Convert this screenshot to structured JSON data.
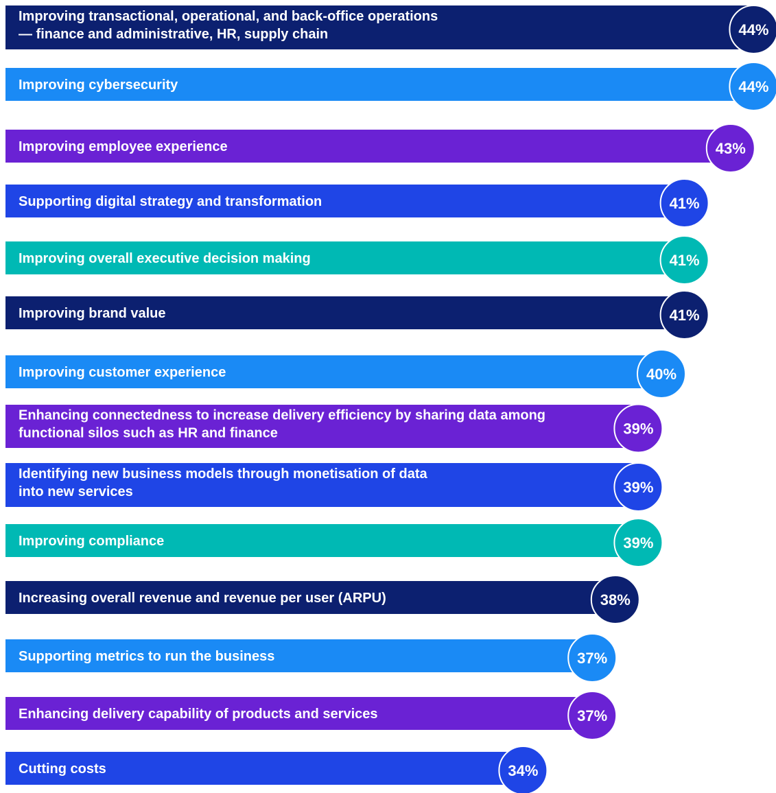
{
  "chart_data": {
    "type": "bar",
    "orientation": "horizontal",
    "categories": [
      [
        "Improving transactional, operational, and back-office operations",
        "— finance and administrative, HR, supply chain"
      ],
      [
        "Improving cybersecurity"
      ],
      [
        "Improving employee experience"
      ],
      [
        "Supporting digital strategy and transformation"
      ],
      [
        "Improving overall executive decision making"
      ],
      [
        "Improving brand value"
      ],
      [
        "Improving customer experience"
      ],
      [
        "Enhancing connectedness to increase delivery efficiency by sharing data among",
        "functional silos such as HR and finance"
      ],
      [
        "Identifying new business models through monetisation of data",
        "into new services"
      ],
      [
        "Improving compliance"
      ],
      [
        "Increasing overall revenue and revenue per user (ARPU)"
      ],
      [
        "Supporting metrics to run the business"
      ],
      [
        "Enhancing delivery capability of products and services"
      ],
      [
        "Cutting costs"
      ]
    ],
    "values": [
      44,
      44,
      43,
      41,
      41,
      41,
      40,
      39,
      39,
      39,
      38,
      37,
      37,
      34
    ],
    "value_labels": [
      "44%",
      "44%",
      "43%",
      "41%",
      "41%",
      "41%",
      "40%",
      "39%",
      "39%",
      "39%",
      "38%",
      "37%",
      "37%",
      "34%"
    ],
    "colors": [
      "#0c2070",
      "#1a8af5",
      "#6a22d4",
      "#1f45e6",
      "#00b9b4",
      "#0c2070",
      "#1a8af5",
      "#6a22d4",
      "#1f45e6",
      "#00b9b4",
      "#0c2070",
      "#1a8af5",
      "#6a22d4",
      "#1f45e6"
    ]
  }
}
